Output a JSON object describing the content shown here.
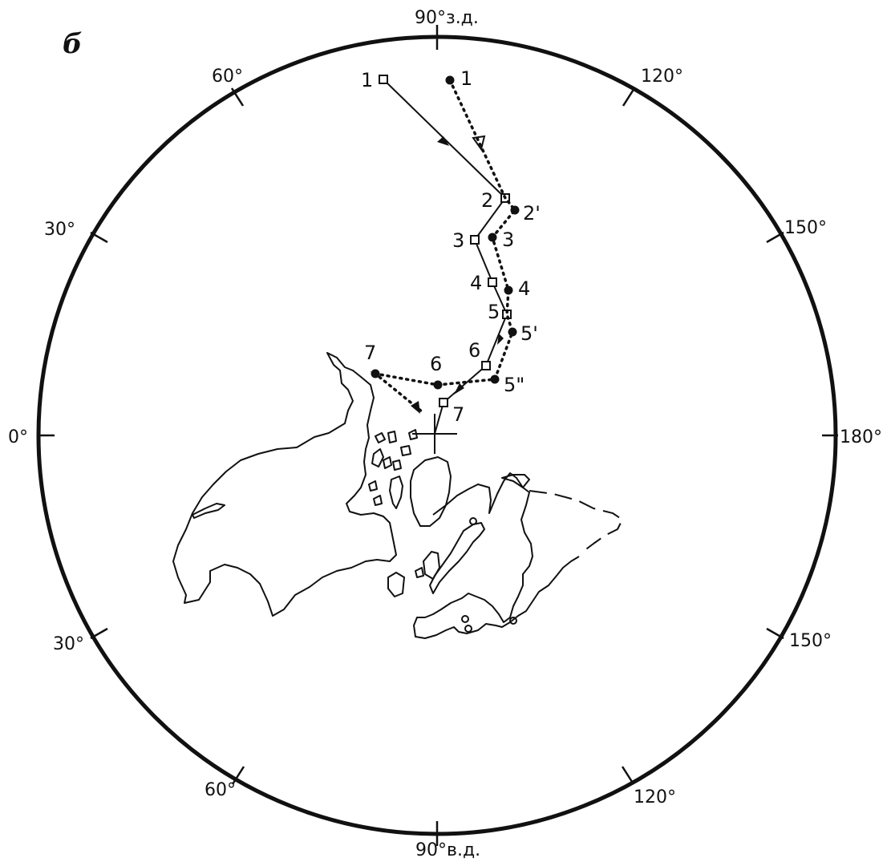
{
  "panel_label": "б",
  "longitude_labels": {
    "top": "90°з.д.",
    "bottom": "90°в.д.",
    "left": "0°",
    "right": "180°",
    "upper_left_60": "60°",
    "upper_left_30": "30°",
    "lower_left_30": "30°",
    "lower_left_60": "60°",
    "upper_right_120": "120°",
    "upper_right_150": "150°",
    "lower_right_150": "150°",
    "lower_right_120": "120°"
  },
  "solid_path": {
    "marker": "open-square",
    "points": [
      {
        "id": "p1",
        "label": "1"
      },
      {
        "id": "p2",
        "label": "2"
      },
      {
        "id": "p3",
        "label": "3"
      },
      {
        "id": "p4",
        "label": "4"
      },
      {
        "id": "p5",
        "label": "5"
      },
      {
        "id": "p6",
        "label": "6"
      },
      {
        "id": "p7",
        "label": "7"
      }
    ]
  },
  "dotted_path": {
    "marker": "filled-circle",
    "points": [
      {
        "id": "d1",
        "label": "1"
      },
      {
        "id": "d2",
        "label": "2'"
      },
      {
        "id": "d3",
        "label": "3"
      },
      {
        "id": "d4",
        "label": "4"
      },
      {
        "id": "d5",
        "label": "5'"
      },
      {
        "id": "d5b",
        "label": "5\""
      },
      {
        "id": "d6",
        "label": "6"
      },
      {
        "id": "d7",
        "label": "7"
      }
    ]
  },
  "pole_marker": "plus-icon"
}
